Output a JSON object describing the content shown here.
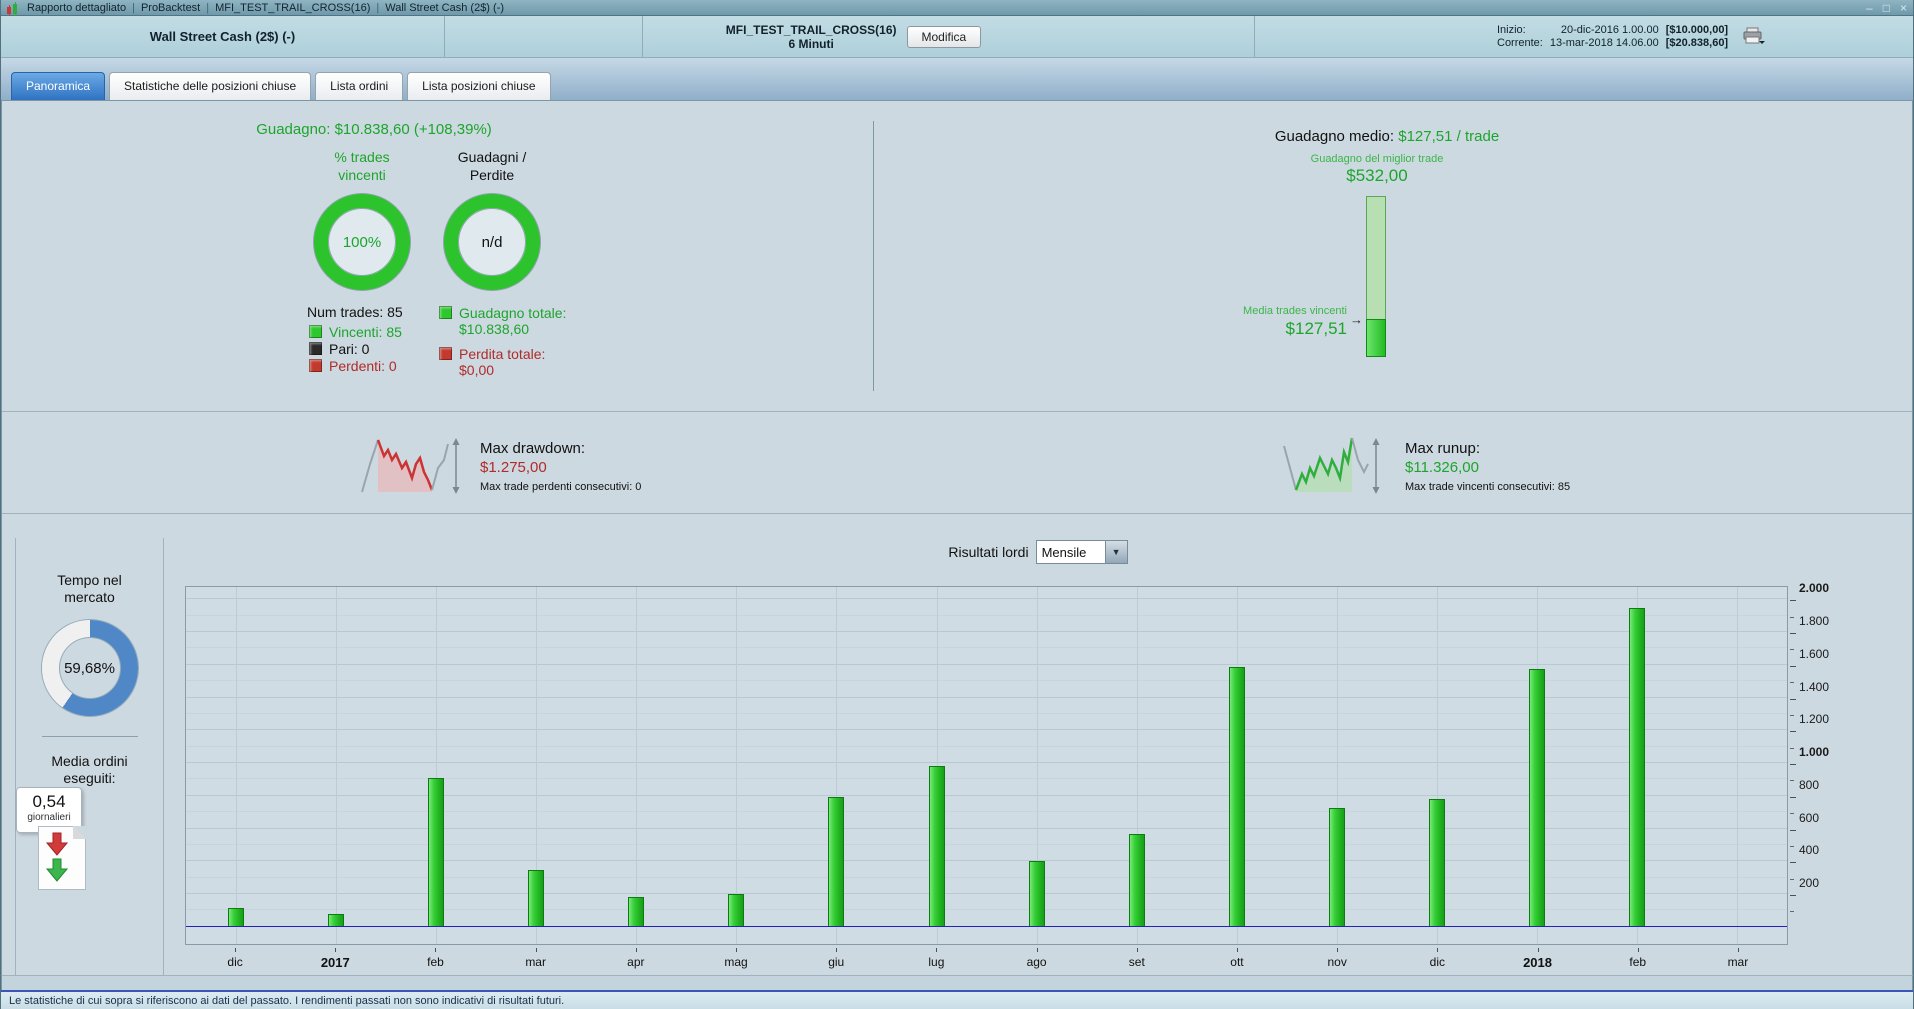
{
  "window": {
    "title_items": [
      "Rapporto dettagliato",
      "ProBacktest",
      "MFI_TEST_TRAIL_CROSS(16)",
      "Wall Street Cash (2$) (-)"
    ],
    "controls": {
      "minimize": "–",
      "maximize": "□",
      "close": "×"
    }
  },
  "header": {
    "instrument": "Wall Street Cash (2$) (-)",
    "strategy_name": "MFI_TEST_TRAIL_CROSS(16)",
    "strategy_timeframe": "6 Minuti",
    "modify_button": "Modifica",
    "start_label": "Inizio:",
    "start_datetime": "20-dic-2016 1.00.00",
    "start_capital": "[$10.000,00]",
    "current_label": "Corrente:",
    "current_datetime": "13-mar-2018 14.06.00",
    "current_capital": "[$20.838,60]"
  },
  "tabs": [
    {
      "label": "Panoramica",
      "active": true
    },
    {
      "label": "Statistiche delle posizioni chiuse",
      "active": false
    },
    {
      "label": "Lista ordini",
      "active": false
    },
    {
      "label": "Lista posizioni chiuse",
      "active": false
    }
  ],
  "overview": {
    "gain_label": "Guadagno:",
    "gain_value": "$10.838,60 (+108,39%)",
    "winning_trades_title_1": "% trades",
    "winning_trades_title_2": "vincenti",
    "winning_trades_pct": "100%",
    "gain_loss_title_1": "Guadagni /",
    "gain_loss_title_2": "Perdite",
    "gain_loss_value": "n/d",
    "num_trades": "Num trades: 85",
    "legend": [
      {
        "label": "Vincenti: 85",
        "color": "#2ec82e",
        "text_color": "#1ca52c"
      },
      {
        "label": "Pari: 0",
        "color": "#2a2a2a",
        "text_color": "#111111"
      },
      {
        "label": "Perdenti: 0",
        "color": "#c23a2e",
        "text_color": "#b02b2b"
      }
    ],
    "total_gain_label": "Guadagno totale:",
    "total_gain_value": "$10.838,60",
    "total_loss_label": "Perdita totale:",
    "total_loss_value": "$0,00",
    "avg_gain_label": "Guadagno medio:",
    "avg_gain_value": "$127,51 / trade",
    "best_trade_label": "Guadagno del miglior trade",
    "best_trade_value": "$532,00",
    "avg_win_label": "Media trades vincenti",
    "avg_win_value": "$127,51",
    "best_trade_bar": {
      "max": 532,
      "avg": 127.51
    }
  },
  "drawdown": {
    "title": "Max drawdown:",
    "value": "$1.275,00",
    "subtitle": "Max trade perdenti consecutivi: 0"
  },
  "runup": {
    "title": "Max runup:",
    "value": "$11.326,00",
    "subtitle": "Max trade vincenti consecutivi: 85"
  },
  "time_in_market": {
    "title_1": "Tempo nel",
    "title_2": "mercato",
    "value": "59,68%",
    "pct": 59.68
  },
  "avg_orders": {
    "title_1": "Media ordini",
    "title_2": "eseguiti:",
    "value": "0,54",
    "unit": "giornalieri"
  },
  "results": {
    "label": "Risultati lordi",
    "period": "Mensile"
  },
  "chart_data": {
    "type": "bar",
    "title": "Risultati lordi (Mensile)",
    "categories": [
      "dic",
      "2017",
      "feb",
      "mar",
      "apr",
      "mag",
      "giu",
      "lug",
      "ago",
      "set",
      "ott",
      "nov",
      "dic",
      "2018",
      "feb",
      "mar"
    ],
    "bold_categories": [
      "2017",
      "2018"
    ],
    "values": [
      115,
      80,
      910,
      350,
      180,
      200,
      790,
      980,
      405,
      565,
      1585,
      725,
      780,
      1575,
      1950,
      0
    ],
    "xlabel": "",
    "ylabel": "",
    "y_ticks": [
      200,
      400,
      600,
      800,
      1000,
      1200,
      1400,
      1600,
      1800,
      2000
    ],
    "bold_y_ticks": [
      1000,
      2000
    ],
    "ylim": [
      0,
      2000
    ],
    "render_ylim": [
      -105,
      2075
    ],
    "grid": true,
    "legend_position": "none",
    "bar_color": "#2ebd2e",
    "zero_line_color": "#2323bb"
  },
  "status_bar": "Le statistiche di cui sopra si riferiscono ai dati del passato. I rendimenti passati non sono indicativi di risultati futuri.",
  "colors": {
    "positive_green": "#1ca52c",
    "negative_red": "#b02b2b",
    "time_donut_blue": "#4f87c7",
    "active_tab_blue": "#2f72c2",
    "panel_background": "#cdd9e0"
  }
}
